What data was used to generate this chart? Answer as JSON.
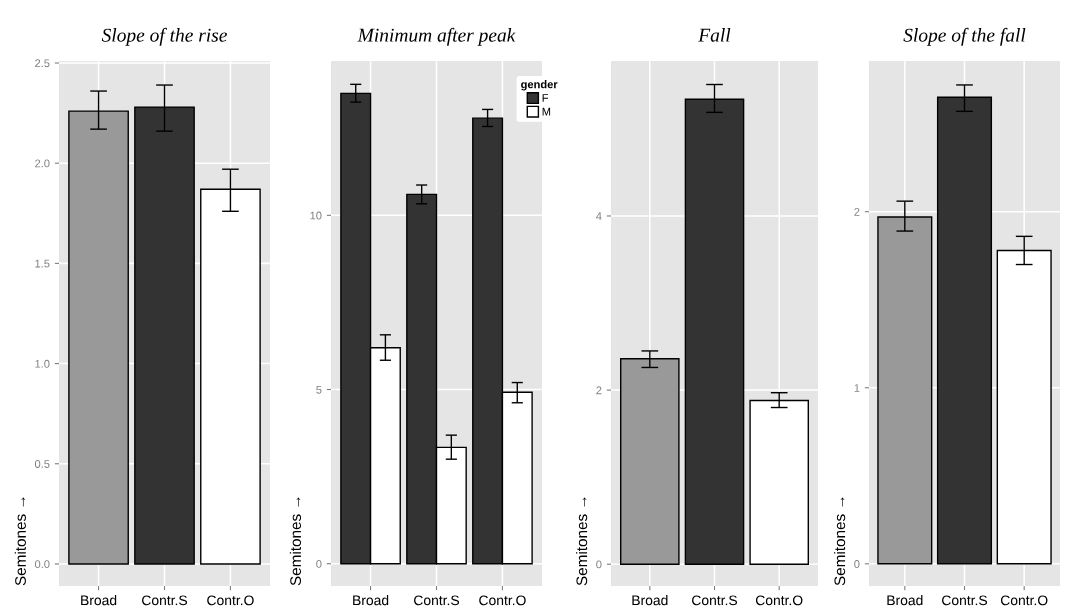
{
  "chart_data": [
    {
      "type": "bar",
      "title": "Slope of the rise",
      "ylabel": "Semitones →",
      "categories": [
        "Broad",
        "Contr.S",
        "Contr.O"
      ],
      "values": [
        2.26,
        2.28,
        1.87
      ],
      "colors": [
        "#999999",
        "#333333",
        "#ffffff"
      ],
      "errors": [
        [
          2.17,
          2.36
        ],
        [
          2.16,
          2.39
        ],
        [
          1.76,
          1.97
        ]
      ],
      "ylim": [
        -0.11,
        2.51
      ],
      "yticks": [
        {
          "value": 0,
          "label": "0.0"
        },
        {
          "value": 0.5,
          "label": "0.5"
        },
        {
          "value": 1,
          "label": "1.0"
        },
        {
          "value": 1.5,
          "label": "1.5"
        },
        {
          "value": 2,
          "label": "2.0"
        },
        {
          "value": 2.5,
          "label": "2.5"
        }
      ],
      "grid": true
    },
    {
      "type": "bar",
      "title": "Minimum after peak",
      "ylabel": "Semitones →",
      "categories": [
        "Broad",
        "Contr.S",
        "Contr.O"
      ],
      "legend_title": "gender",
      "legend": "top right",
      "series": [
        {
          "name": "F",
          "color": "#333333",
          "values": [
            13.5,
            10.6,
            12.79
          ],
          "errors": [
            [
              13.25,
              13.76
            ],
            [
              10.33,
              10.87
            ],
            [
              12.55,
              13.04
            ]
          ]
        },
        {
          "name": "M",
          "color": "#ffffff",
          "values": [
            6.2,
            3.34,
            4.92
          ],
          "errors": [
            [
              5.84,
              6.57
            ],
            [
              3.0,
              3.69
            ],
            [
              4.62,
              5.2
            ]
          ]
        }
      ],
      "ylim": [
        -0.64,
        14.43
      ],
      "yticks": [
        0,
        5,
        10
      ],
      "grid": true
    },
    {
      "type": "bar",
      "title": "Fall",
      "ylabel": "Semitones →",
      "categories": [
        "Broad",
        "Contr.S",
        "Contr.O"
      ],
      "values": [
        2.36,
        5.34,
        1.88
      ],
      "colors": [
        "#999999",
        "#333333",
        "#ffffff"
      ],
      "errors": [
        [
          2.26,
          2.45
        ],
        [
          5.19,
          5.51
        ],
        [
          1.8,
          1.97
        ]
      ],
      "ylim": [
        -0.25,
        5.78
      ],
      "yticks": [
        0,
        2,
        4
      ],
      "grid": true
    },
    {
      "type": "bar",
      "title": "Slope of the fall",
      "ylabel": "Semitones →",
      "categories": [
        "Broad",
        "Contr.S",
        "Contr.O"
      ],
      "values": [
        1.97,
        2.65,
        1.78
      ],
      "colors": [
        "#999999",
        "#333333",
        "#ffffff"
      ],
      "errors": [
        [
          1.89,
          2.06
        ],
        [
          2.57,
          2.72
        ],
        [
          1.7,
          1.86
        ]
      ],
      "ylim": [
        -0.126,
        2.856
      ],
      "yticks": [
        0,
        1,
        2
      ],
      "grid": true
    }
  ]
}
